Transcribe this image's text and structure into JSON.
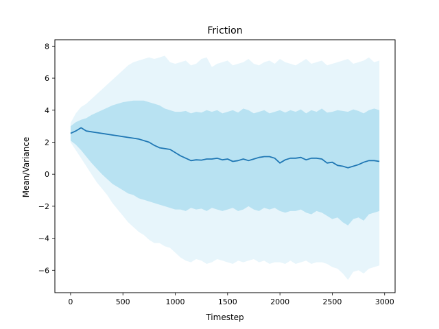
{
  "chart_data": {
    "type": "area",
    "title": "Friction",
    "xlabel": "Timestep",
    "ylabel": "Mean/Variance",
    "xlim": [
      -150,
      3100
    ],
    "ylim": [
      -7.4,
      8.4
    ],
    "xticks": [
      0,
      500,
      1000,
      1500,
      2000,
      2500,
      3000
    ],
    "yticks": [
      -6,
      -4,
      -2,
      0,
      2,
      4,
      6,
      8
    ],
    "grid": false,
    "legend": "none",
    "colors": {
      "mean_line": "#1f77b4",
      "inner_band": "#7fcbe6",
      "inner_band_opacity": 0.45,
      "outer_band": "#b3e0f2",
      "outer_band_opacity": 0.32
    },
    "x": [
      0,
      50,
      100,
      150,
      200,
      250,
      300,
      350,
      400,
      450,
      500,
      550,
      600,
      650,
      700,
      750,
      800,
      850,
      900,
      950,
      1000,
      1050,
      1100,
      1150,
      1200,
      1250,
      1300,
      1350,
      1400,
      1450,
      1500,
      1550,
      1600,
      1650,
      1700,
      1750,
      1800,
      1850,
      1900,
      1950,
      2000,
      2050,
      2100,
      2150,
      2200,
      2250,
      2300,
      2350,
      2400,
      2450,
      2500,
      2550,
      2600,
      2650,
      2700,
      2750,
      2800,
      2850,
      2900,
      2950
    ],
    "series": [
      {
        "role": "mean",
        "values": [
          2.55,
          2.7,
          2.9,
          2.7,
          2.65,
          2.6,
          2.55,
          2.5,
          2.45,
          2.4,
          2.35,
          2.3,
          2.25,
          2.2,
          2.1,
          2.0,
          1.8,
          1.65,
          1.6,
          1.55,
          1.35,
          1.15,
          1.0,
          0.85,
          0.9,
          0.88,
          0.95,
          0.95,
          1.0,
          0.9,
          0.95,
          0.8,
          0.85,
          0.95,
          0.85,
          0.95,
          1.05,
          1.1,
          1.1,
          1.0,
          0.7,
          0.9,
          1.0,
          1.0,
          1.05,
          0.9,
          1.0,
          1.0,
          0.95,
          0.7,
          0.75,
          0.55,
          0.5,
          0.4,
          0.5,
          0.6,
          0.75,
          0.85,
          0.85,
          0.8
        ]
      },
      {
        "role": "inner_band_upper",
        "values": [
          3.0,
          3.25,
          3.4,
          3.5,
          3.7,
          3.85,
          4.0,
          4.15,
          4.3,
          4.4,
          4.5,
          4.55,
          4.6,
          4.6,
          4.6,
          4.5,
          4.4,
          4.3,
          4.1,
          4.0,
          3.9,
          3.9,
          3.95,
          3.8,
          3.9,
          3.85,
          4.0,
          3.9,
          4.0,
          3.8,
          3.9,
          4.0,
          3.85,
          4.1,
          4.0,
          3.8,
          3.9,
          4.0,
          3.8,
          3.9,
          4.0,
          3.85,
          4.0,
          3.9,
          4.05,
          3.8,
          4.0,
          3.9,
          4.1,
          3.85,
          3.9,
          4.0,
          3.95,
          3.9,
          4.05,
          3.95,
          3.8,
          4.0,
          4.1,
          4.0
        ]
      },
      {
        "role": "inner_band_lower",
        "values": [
          2.1,
          1.85,
          1.5,
          1.1,
          0.7,
          0.35,
          0.0,
          -0.3,
          -0.6,
          -0.8,
          -1.0,
          -1.2,
          -1.3,
          -1.5,
          -1.6,
          -1.7,
          -1.8,
          -1.9,
          -2.0,
          -2.1,
          -2.2,
          -2.2,
          -2.3,
          -2.1,
          -2.2,
          -2.15,
          -2.3,
          -2.1,
          -2.2,
          -2.3,
          -2.2,
          -2.1,
          -2.3,
          -2.2,
          -2.0,
          -2.2,
          -2.3,
          -2.1,
          -2.2,
          -2.1,
          -2.3,
          -2.4,
          -2.3,
          -2.3,
          -2.2,
          -2.4,
          -2.5,
          -2.3,
          -2.4,
          -2.6,
          -2.8,
          -2.7,
          -3.0,
          -3.2,
          -2.8,
          -2.7,
          -2.9,
          -2.5,
          -2.4,
          -2.3
        ]
      },
      {
        "role": "outer_band_upper",
        "values": [
          3.2,
          3.8,
          4.2,
          4.4,
          4.7,
          5.0,
          5.3,
          5.6,
          5.9,
          6.2,
          6.5,
          6.8,
          7.0,
          7.1,
          7.2,
          7.3,
          7.2,
          7.3,
          7.4,
          7.0,
          6.9,
          7.0,
          7.1,
          6.8,
          6.9,
          7.2,
          7.3,
          6.7,
          6.9,
          7.0,
          7.1,
          6.8,
          6.9,
          7.0,
          7.2,
          6.9,
          6.8,
          7.0,
          7.1,
          6.9,
          7.2,
          7.0,
          6.9,
          6.8,
          7.0,
          7.2,
          6.9,
          7.0,
          7.1,
          6.8,
          6.9,
          7.0,
          7.1,
          7.2,
          6.9,
          7.0,
          7.1,
          7.3,
          7.0,
          7.1
        ]
      },
      {
        "role": "outer_band_lower",
        "values": [
          2.0,
          1.5,
          1.0,
          0.5,
          0.0,
          -0.5,
          -0.9,
          -1.3,
          -1.8,
          -2.2,
          -2.6,
          -3.0,
          -3.3,
          -3.6,
          -3.8,
          -4.1,
          -4.3,
          -4.3,
          -4.5,
          -4.6,
          -4.9,
          -5.2,
          -5.4,
          -5.5,
          -5.3,
          -5.4,
          -5.6,
          -5.5,
          -5.3,
          -5.4,
          -5.5,
          -5.6,
          -5.4,
          -5.5,
          -5.4,
          -5.3,
          -5.5,
          -5.4,
          -5.6,
          -5.5,
          -5.5,
          -5.6,
          -5.4,
          -5.6,
          -5.5,
          -5.4,
          -5.6,
          -5.5,
          -5.5,
          -5.6,
          -5.8,
          -5.9,
          -6.2,
          -6.6,
          -6.1,
          -6.0,
          -6.2,
          -5.9,
          -5.8,
          -5.7
        ]
      }
    ]
  }
}
